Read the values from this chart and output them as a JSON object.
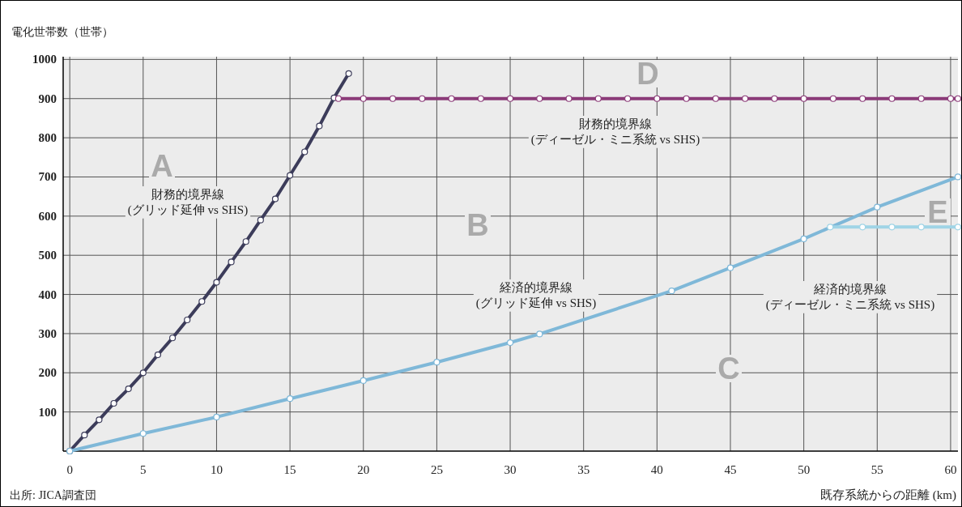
{
  "chart_data": {
    "type": "line",
    "ylabel": "電化世帯数（世帯）",
    "xlabel": "既存系統からの距離 (km)",
    "xlim": [
      -0.45,
      60.5
    ],
    "ylim": [
      0,
      1007
    ],
    "xticks": [
      0,
      5,
      10,
      15,
      20,
      25,
      30,
      35,
      40,
      45,
      50,
      55,
      60
    ],
    "yticks": [
      100,
      200,
      300,
      400,
      500,
      600,
      700,
      800,
      900,
      1000
    ],
    "grid": true,
    "marker": "circle",
    "line_style": "solid",
    "series": [
      {
        "color": "#3c3c5a",
        "x": [
          0,
          1,
          2,
          3,
          4,
          5,
          6,
          7,
          8,
          9,
          10,
          11,
          12,
          13,
          14,
          15,
          16,
          17,
          18,
          19
        ],
        "values": [
          0,
          41,
          80,
          122,
          159,
          200,
          246,
          289,
          335,
          382,
          431,
          483,
          535,
          590,
          644,
          704,
          764,
          830,
          902,
          964
        ]
      },
      {
        "color": "#8b3a78",
        "x": [
          18.3,
          20,
          22,
          24,
          26,
          28,
          30,
          32,
          34,
          36,
          38,
          40,
          42,
          44,
          46,
          48,
          50,
          52,
          54,
          56,
          58,
          60,
          60.5
        ],
        "values": [
          900,
          900,
          900,
          900,
          900,
          900,
          900,
          900,
          900,
          900,
          900,
          900,
          900,
          900,
          900,
          900,
          900,
          900,
          900,
          900,
          900,
          900,
          900
        ]
      },
      {
        "color": "#7fb8d8",
        "x": [
          0,
          5,
          10,
          15,
          20,
          25,
          30,
          32,
          41,
          45,
          50,
          55,
          60.5
        ],
        "values": [
          0,
          45,
          87,
          134,
          180,
          227,
          277,
          299,
          409,
          468,
          542,
          623,
          700
        ]
      },
      {
        "color": "#9fd4e6",
        "x": [
          51.8,
          54,
          56,
          58,
          60.5
        ],
        "values": [
          572,
          572,
          572,
          572,
          572
        ]
      }
    ],
    "annotations": [
      "A",
      "B",
      "C",
      "D",
      "E",
      "財務的境界線\n(グリッド延伸 vs SHS)",
      "財務的境界線\n(ディーゼル・ミニ系統 vs SHS)",
      "経済的境界線\n(グリッド延伸 vs SHS)",
      "経済的境界線\n(ディーゼル・ミニ系統 vs SHS)",
      "出所: JICA調査団"
    ]
  }
}
